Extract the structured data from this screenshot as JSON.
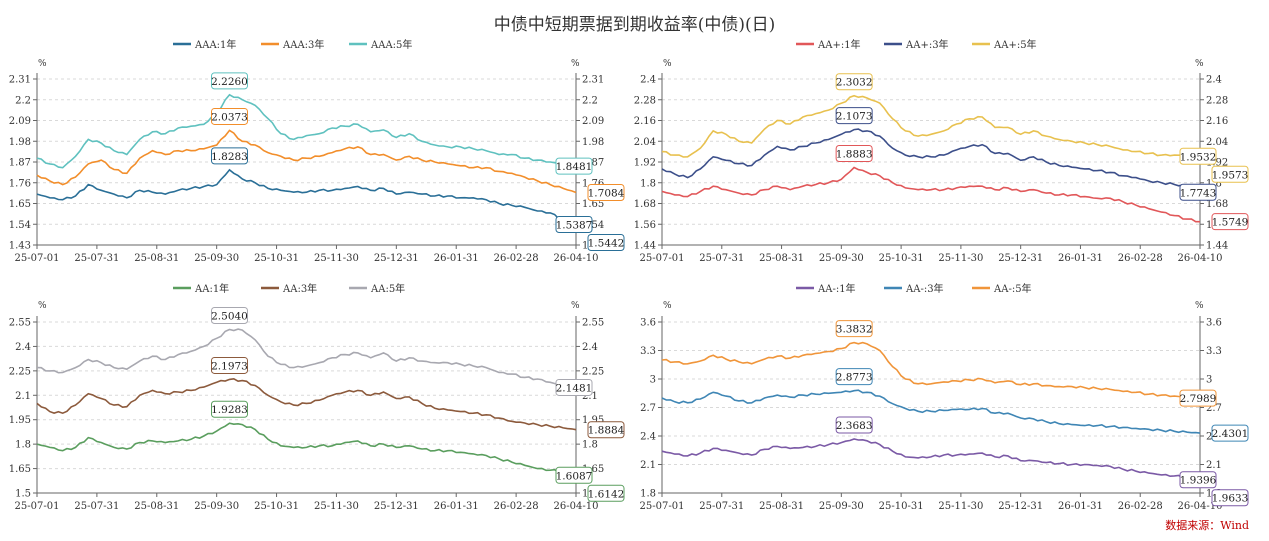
{
  "title": "中债中短期票据到期收益率(中债)(日)",
  "source": "数据来源：Wind",
  "unit_label": "%",
  "chart_data": [
    {
      "type": "line",
      "x_ticks": [
        "25-07-01",
        "25-07-31",
        "25-08-31",
        "25-09-30",
        "25-10-31",
        "25-11-30",
        "25-12-31",
        "26-01-31",
        "26-02-28",
        "26-04-10"
      ],
      "ylim": [
        1.43,
        2.31
      ],
      "y_ticks": [
        1.43,
        1.54,
        1.65,
        1.76,
        1.87,
        1.98,
        2.09,
        2.2,
        2.31
      ],
      "y_ticks_labels": [
        "1.43",
        "1.54",
        "1.65",
        "1.76",
        "1.87",
        "1.98",
        "2.09",
        "2.2",
        "2.31"
      ],
      "series": [
        {
          "name": "AAA:1年",
          "color": "#2a6f97",
          "values": [
            1.7,
            1.68,
            1.67,
            1.69,
            1.75,
            1.72,
            1.7,
            1.68,
            1.72,
            1.71,
            1.7,
            1.72,
            1.73,
            1.74,
            1.75,
            1.8283,
            1.78,
            1.76,
            1.73,
            1.72,
            1.71,
            1.71,
            1.72,
            1.72,
            1.73,
            1.74,
            1.72,
            1.73,
            1.7,
            1.71,
            1.7,
            1.69,
            1.69,
            1.68,
            1.68,
            1.67,
            1.65,
            1.64,
            1.63,
            1.61,
            1.6,
            1.56,
            1.5387
          ],
          "max_label": "1.8283",
          "end_label": "1.5387"
        },
        {
          "name": "AAA:3年",
          "color": "#f28e2b",
          "values": [
            1.8,
            1.77,
            1.75,
            1.79,
            1.86,
            1.88,
            1.83,
            1.81,
            1.89,
            1.93,
            1.91,
            1.93,
            1.93,
            1.94,
            1.96,
            2.0373,
            1.98,
            1.96,
            1.92,
            1.9,
            1.88,
            1.89,
            1.9,
            1.92,
            1.94,
            1.95,
            1.91,
            1.91,
            1.88,
            1.9,
            1.88,
            1.87,
            1.86,
            1.85,
            1.84,
            1.84,
            1.82,
            1.81,
            1.79,
            1.77,
            1.75,
            1.73,
            1.7084
          ],
          "max_label": "2.0373",
          "end_label": "1.7084"
        },
        {
          "name": "AAA:5年",
          "color": "#5fc1bf",
          "values": [
            1.89,
            1.86,
            1.84,
            1.9,
            1.99,
            1.97,
            1.93,
            1.91,
            1.99,
            2.03,
            2.02,
            2.05,
            2.06,
            2.07,
            2.13,
            2.226,
            2.2,
            2.17,
            2.1,
            2.02,
            1.99,
            2.01,
            2.02,
            2.05,
            2.06,
            2.07,
            2.03,
            2.04,
            2.0,
            2.02,
            1.98,
            1.96,
            1.95,
            1.95,
            1.94,
            1.93,
            1.91,
            1.91,
            1.89,
            1.88,
            1.87,
            1.86,
            1.8481
          ],
          "max_label": "2.2260",
          "end_label": "1.8481"
        }
      ],
      "extra_end_label": {
        "text": "1.5442",
        "series": 0
      }
    },
    {
      "type": "line",
      "x_ticks": [
        "25-07-01",
        "25-07-31",
        "25-08-31",
        "25-09-30",
        "25-10-31",
        "25-11-30",
        "25-12-31",
        "26-01-31",
        "26-02-28",
        "26-04-10"
      ],
      "ylim": [
        1.44,
        2.4
      ],
      "y_ticks": [
        1.44,
        1.56,
        1.68,
        1.8,
        1.92,
        2.04,
        2.16,
        2.28,
        2.4
      ],
      "y_ticks_labels": [
        "1.44",
        "1.56",
        "1.68",
        "1.8",
        "1.92",
        "2.04",
        "2.16",
        "2.28",
        "2.4"
      ],
      "series": [
        {
          "name": "AA+:1年",
          "color": "#e15759",
          "values": [
            1.75,
            1.73,
            1.72,
            1.75,
            1.78,
            1.76,
            1.74,
            1.73,
            1.76,
            1.78,
            1.76,
            1.78,
            1.79,
            1.8,
            1.82,
            1.8883,
            1.86,
            1.84,
            1.8,
            1.77,
            1.76,
            1.76,
            1.76,
            1.77,
            1.78,
            1.78,
            1.76,
            1.77,
            1.75,
            1.76,
            1.74,
            1.73,
            1.73,
            1.72,
            1.71,
            1.71,
            1.69,
            1.67,
            1.65,
            1.63,
            1.61,
            1.59,
            1.5749
          ],
          "max_label": "1.8883",
          "end_label": "1.5749"
        },
        {
          "name": "AA+:3年",
          "color": "#3c4f8a",
          "values": [
            1.88,
            1.85,
            1.83,
            1.88,
            1.95,
            1.93,
            1.91,
            1.9,
            1.96,
            2.01,
            1.99,
            2.01,
            2.03,
            2.05,
            2.08,
            2.1073,
            2.1,
            2.07,
            2.0,
            1.96,
            1.95,
            1.95,
            1.96,
            1.99,
            2.01,
            2.02,
            1.97,
            1.97,
            1.93,
            1.95,
            1.92,
            1.9,
            1.89,
            1.88,
            1.87,
            1.86,
            1.84,
            1.83,
            1.81,
            1.8,
            1.79,
            1.78,
            1.7743
          ],
          "max_label": "2.1073",
          "end_label": "1.7743"
        },
        {
          "name": "AA+:5年",
          "color": "#e8c14f",
          "values": [
            1.98,
            1.96,
            1.95,
            2.0,
            2.1,
            2.08,
            2.04,
            2.03,
            2.11,
            2.16,
            2.14,
            2.18,
            2.2,
            2.22,
            2.26,
            2.3032,
            2.29,
            2.26,
            2.17,
            2.1,
            2.07,
            2.08,
            2.1,
            2.14,
            2.17,
            2.18,
            2.12,
            2.12,
            2.08,
            2.1,
            2.07,
            2.05,
            2.04,
            2.03,
            2.02,
            2.01,
            1.99,
            1.98,
            1.97,
            1.96,
            1.96,
            1.96,
            1.9532
          ],
          "max_label": "2.3032",
          "end_label": "1.9532"
        }
      ],
      "extra_end_label": {
        "text": "1.9573",
        "series": 2
      }
    },
    {
      "type": "line",
      "x_ticks": [
        "25-07-01",
        "25-07-31",
        "25-08-31",
        "25-09-30",
        "25-10-31",
        "25-11-30",
        "25-12-31",
        "26-01-31",
        "26-02-28",
        "26-04-10"
      ],
      "ylim": [
        1.5,
        2.55
      ],
      "y_ticks": [
        1.5,
        1.65,
        1.8,
        1.95,
        2.1,
        2.25,
        2.4,
        2.55
      ],
      "y_ticks_labels": [
        "1.5",
        "1.65",
        "1.8",
        "1.95",
        "2.1",
        "2.25",
        "2.4",
        "2.55"
      ],
      "series": [
        {
          "name": "AA:1年",
          "color": "#5a9e5e",
          "values": [
            1.8,
            1.78,
            1.76,
            1.78,
            1.84,
            1.81,
            1.78,
            1.77,
            1.81,
            1.82,
            1.81,
            1.82,
            1.83,
            1.85,
            1.88,
            1.9283,
            1.92,
            1.89,
            1.83,
            1.79,
            1.78,
            1.78,
            1.79,
            1.79,
            1.81,
            1.82,
            1.79,
            1.8,
            1.78,
            1.79,
            1.77,
            1.76,
            1.76,
            1.75,
            1.74,
            1.73,
            1.71,
            1.69,
            1.67,
            1.65,
            1.64,
            1.63,
            1.6087
          ],
          "max_label": "1.9283",
          "end_label": "1.6087"
        },
        {
          "name": "AA:3年",
          "color": "#8c5a3c",
          "values": [
            2.05,
            2.0,
            1.99,
            2.04,
            2.11,
            2.08,
            2.04,
            2.03,
            2.1,
            2.13,
            2.11,
            2.12,
            2.13,
            2.15,
            2.18,
            2.1973,
            2.19,
            2.16,
            2.1,
            2.06,
            2.04,
            2.05,
            2.07,
            2.1,
            2.12,
            2.13,
            2.1,
            2.12,
            2.08,
            2.09,
            2.05,
            2.02,
            2.01,
            2.0,
            1.99,
            1.98,
            1.96,
            1.94,
            1.93,
            1.92,
            1.91,
            1.9,
            1.8884
          ],
          "max_label": "2.1973",
          "end_label": "1.8884"
        },
        {
          "name": "AA:5年",
          "color": "#a8a8b0",
          "values": [
            2.27,
            2.25,
            2.24,
            2.27,
            2.32,
            2.3,
            2.27,
            2.26,
            2.31,
            2.34,
            2.32,
            2.35,
            2.37,
            2.4,
            2.45,
            2.504,
            2.5,
            2.44,
            2.34,
            2.29,
            2.27,
            2.28,
            2.3,
            2.33,
            2.35,
            2.36,
            2.33,
            2.36,
            2.31,
            2.33,
            2.31,
            2.3,
            2.3,
            2.29,
            2.28,
            2.27,
            2.24,
            2.23,
            2.21,
            2.2,
            2.18,
            2.16,
            2.1481
          ],
          "max_label": "2.5040",
          "end_label": "2.1481"
        }
      ],
      "extra_end_label": {
        "text": "1.6142",
        "series": 0
      }
    },
    {
      "type": "line",
      "x_ticks": [
        "25-07-01",
        "25-07-31",
        "25-08-31",
        "25-09-30",
        "25-10-31",
        "25-11-30",
        "25-12-31",
        "26-01-31",
        "26-02-28",
        "26-04-10"
      ],
      "ylim": [
        1.8,
        3.6
      ],
      "y_ticks": [
        1.8,
        2.1,
        2.4,
        2.7,
        3,
        3.3,
        3.6
      ],
      "y_ticks_labels": [
        "1.8",
        "2.1",
        "2.4",
        "2.7",
        "3",
        "3.3",
        "3.6"
      ],
      "series": [
        {
          "name": "AA-:1年",
          "color": "#7b5aa6",
          "values": [
            2.24,
            2.21,
            2.19,
            2.22,
            2.27,
            2.25,
            2.22,
            2.2,
            2.26,
            2.29,
            2.27,
            2.28,
            2.29,
            2.31,
            2.33,
            2.3683,
            2.35,
            2.31,
            2.24,
            2.18,
            2.17,
            2.18,
            2.2,
            2.2,
            2.21,
            2.22,
            2.18,
            2.19,
            2.14,
            2.14,
            2.12,
            2.11,
            2.1,
            2.1,
            2.09,
            2.08,
            2.05,
            2.03,
            2.01,
            1.99,
            1.98,
            1.96,
            1.9396
          ],
          "max_label": "2.3683",
          "end_label": "1.9396"
        },
        {
          "name": "AA-:3年",
          "color": "#3f86b5",
          "values": [
            2.8,
            2.76,
            2.75,
            2.79,
            2.86,
            2.82,
            2.77,
            2.75,
            2.8,
            2.83,
            2.81,
            2.83,
            2.84,
            2.85,
            2.86,
            2.8773,
            2.86,
            2.82,
            2.74,
            2.69,
            2.66,
            2.66,
            2.67,
            2.68,
            2.68,
            2.69,
            2.64,
            2.64,
            2.59,
            2.58,
            2.55,
            2.53,
            2.52,
            2.51,
            2.51,
            2.5,
            2.49,
            2.48,
            2.47,
            2.46,
            2.45,
            2.44,
            2.4301
          ],
          "max_label": "2.8773",
          "end_label": "2.4301"
        },
        {
          "name": "AA-:5年",
          "color": "#f0953a",
          "values": [
            3.2,
            3.18,
            3.16,
            3.19,
            3.25,
            3.21,
            3.18,
            3.16,
            3.21,
            3.24,
            3.22,
            3.25,
            3.27,
            3.29,
            3.32,
            3.3832,
            3.37,
            3.3,
            3.13,
            3.0,
            2.95,
            2.95,
            2.97,
            2.98,
            2.99,
            3.0,
            2.96,
            2.98,
            2.94,
            2.95,
            2.93,
            2.92,
            2.92,
            2.91,
            2.9,
            2.89,
            2.87,
            2.86,
            2.84,
            2.83,
            2.82,
            2.81,
            2.7989
          ],
          "max_label": "3.3832",
          "end_label": "2.7989"
        }
      ],
      "extra_end_label": {
        "text": "1.9633",
        "series": 0
      }
    }
  ]
}
